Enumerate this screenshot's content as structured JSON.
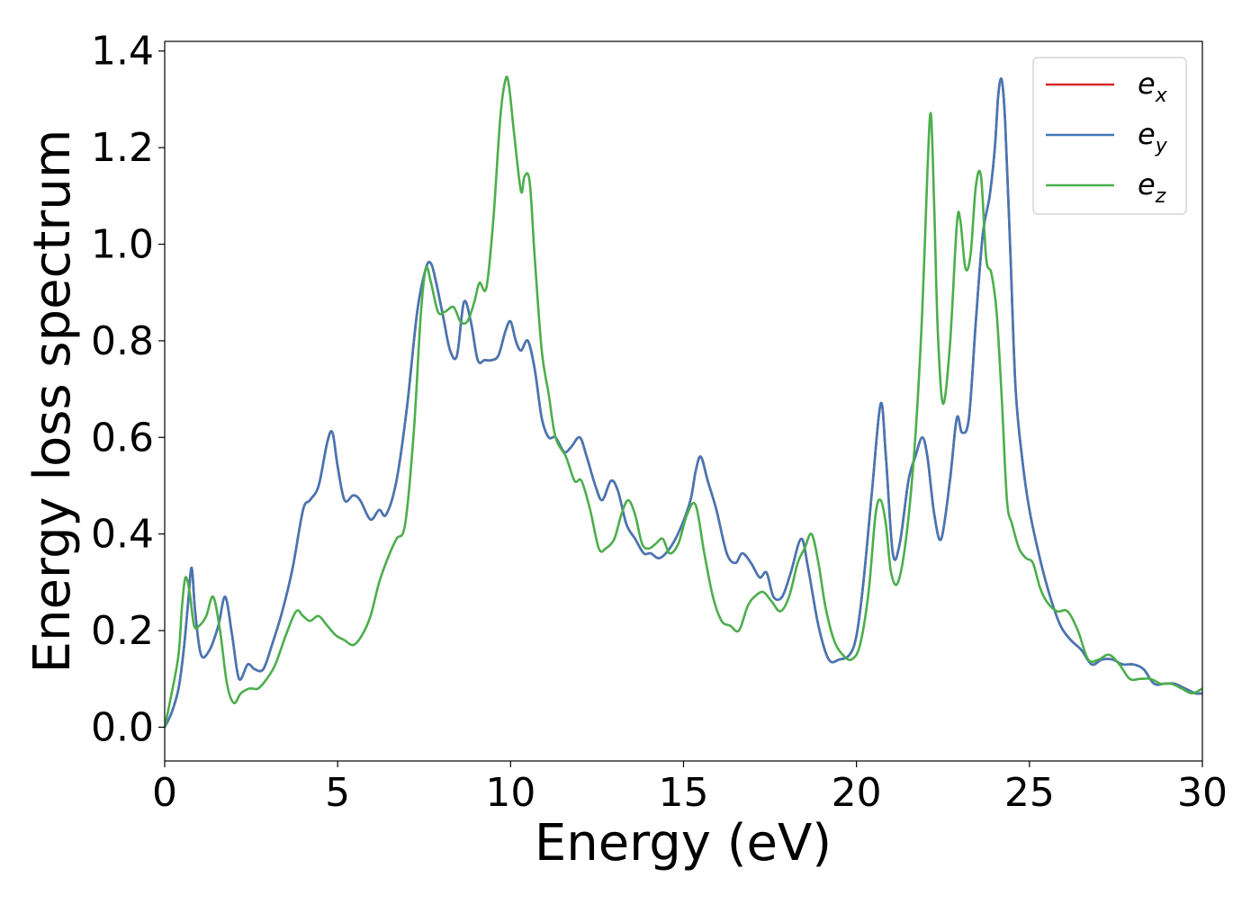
{
  "chart_data": {
    "type": "line",
    "title": "",
    "xlabel": "Energy (eV)",
    "ylabel": "Energy loss spectrum",
    "xlim": [
      0,
      30
    ],
    "ylim": [
      -0.07,
      1.42
    ],
    "xticks": [
      0,
      5,
      10,
      15,
      20,
      25,
      30
    ],
    "yticks": [
      0.0,
      0.2,
      0.4,
      0.6,
      0.8,
      1.0,
      1.2,
      1.4
    ],
    "xtick_labels": [
      "0",
      "5",
      "10",
      "15",
      "20",
      "25",
      "30"
    ],
    "ytick_labels": [
      "0.0",
      "0.2",
      "0.4",
      "0.6",
      "0.8",
      "1.0",
      "1.2",
      "1.4"
    ],
    "grid": false,
    "legend": {
      "location": "top-right",
      "entries": [
        {
          "base": "e",
          "sub": "x",
          "color": "#d62728"
        },
        {
          "base": "e",
          "sub": "y",
          "color": "#4477b5"
        },
        {
          "base": "e",
          "sub": "z",
          "color": "#4cae4c"
        }
      ]
    },
    "series": [
      {
        "name": "e_x",
        "color": "#d62728",
        "x": [
          0,
          0.2,
          0.4,
          0.55,
          0.68,
          0.78,
          0.88,
          1.05,
          1.3,
          1.55,
          1.75,
          1.95,
          2.15,
          2.4,
          2.6,
          2.85,
          3.1,
          3.4,
          3.7,
          4.0,
          4.2,
          4.45,
          4.7,
          4.85,
          5.0,
          5.2,
          5.45,
          5.65,
          5.95,
          6.2,
          6.4,
          6.7,
          7.0,
          7.3,
          7.55,
          7.7,
          7.85,
          8.05,
          8.25,
          8.45,
          8.65,
          8.85,
          9.05,
          9.25,
          9.45,
          9.65,
          9.85,
          10.0,
          10.15,
          10.3,
          10.5,
          10.7,
          10.9,
          11.1,
          11.3,
          11.55,
          11.75,
          12.0,
          12.2,
          12.45,
          12.65,
          12.9,
          13.1,
          13.35,
          13.6,
          13.85,
          14.05,
          14.3,
          14.6,
          14.9,
          15.2,
          15.35,
          15.5,
          15.7,
          15.95,
          16.25,
          16.5,
          16.7,
          16.95,
          17.2,
          17.4,
          17.6,
          17.85,
          18.1,
          18.4,
          18.6,
          18.9,
          19.2,
          19.5,
          19.8,
          20.0,
          20.2,
          20.45,
          20.7,
          20.85,
          21.05,
          21.25,
          21.5,
          21.7,
          21.9,
          22.05,
          22.25,
          22.45,
          22.7,
          22.9,
          23.05,
          23.25,
          23.45,
          23.65,
          23.85,
          24.0,
          24.1,
          24.2,
          24.3,
          24.45,
          24.6,
          24.8,
          25.0,
          25.3,
          25.6,
          25.9,
          26.2,
          26.5,
          26.8,
          27.1,
          27.4,
          27.7,
          28.0,
          28.3,
          28.6,
          28.9,
          29.2,
          29.5,
          29.8,
          30.0
        ],
        "y": [
          0.0,
          0.03,
          0.08,
          0.16,
          0.26,
          0.33,
          0.24,
          0.15,
          0.16,
          0.21,
          0.27,
          0.19,
          0.1,
          0.13,
          0.12,
          0.12,
          0.17,
          0.24,
          0.33,
          0.45,
          0.47,
          0.5,
          0.59,
          0.61,
          0.54,
          0.47,
          0.48,
          0.47,
          0.43,
          0.45,
          0.44,
          0.51,
          0.66,
          0.86,
          0.95,
          0.96,
          0.92,
          0.85,
          0.78,
          0.77,
          0.88,
          0.84,
          0.76,
          0.76,
          0.76,
          0.77,
          0.82,
          0.84,
          0.8,
          0.78,
          0.8,
          0.74,
          0.64,
          0.6,
          0.6,
          0.57,
          0.58,
          0.6,
          0.56,
          0.5,
          0.47,
          0.51,
          0.49,
          0.42,
          0.39,
          0.36,
          0.36,
          0.35,
          0.37,
          0.41,
          0.47,
          0.53,
          0.56,
          0.51,
          0.45,
          0.36,
          0.34,
          0.36,
          0.34,
          0.31,
          0.32,
          0.27,
          0.27,
          0.32,
          0.39,
          0.33,
          0.21,
          0.14,
          0.14,
          0.15,
          0.19,
          0.3,
          0.49,
          0.67,
          0.56,
          0.36,
          0.38,
          0.51,
          0.56,
          0.6,
          0.56,
          0.44,
          0.39,
          0.51,
          0.64,
          0.61,
          0.64,
          0.84,
          1.02,
          1.1,
          1.2,
          1.31,
          1.34,
          1.25,
          0.98,
          0.7,
          0.55,
          0.45,
          0.35,
          0.27,
          0.21,
          0.18,
          0.16,
          0.13,
          0.14,
          0.14,
          0.13,
          0.13,
          0.12,
          0.09,
          0.09,
          0.09,
          0.08,
          0.07,
          0.07
        ]
      },
      {
        "name": "e_y",
        "color": "#4477b5",
        "x": [
          0,
          0.2,
          0.4,
          0.55,
          0.68,
          0.78,
          0.88,
          1.05,
          1.3,
          1.55,
          1.75,
          1.95,
          2.15,
          2.4,
          2.6,
          2.85,
          3.1,
          3.4,
          3.7,
          4.0,
          4.2,
          4.45,
          4.7,
          4.85,
          5.0,
          5.2,
          5.45,
          5.65,
          5.95,
          6.2,
          6.4,
          6.7,
          7.0,
          7.3,
          7.55,
          7.7,
          7.85,
          8.05,
          8.25,
          8.45,
          8.65,
          8.85,
          9.05,
          9.25,
          9.45,
          9.65,
          9.85,
          10.0,
          10.15,
          10.3,
          10.5,
          10.7,
          10.9,
          11.1,
          11.3,
          11.55,
          11.75,
          12.0,
          12.2,
          12.45,
          12.65,
          12.9,
          13.1,
          13.35,
          13.6,
          13.85,
          14.05,
          14.3,
          14.6,
          14.9,
          15.2,
          15.35,
          15.5,
          15.7,
          15.95,
          16.25,
          16.5,
          16.7,
          16.95,
          17.2,
          17.4,
          17.6,
          17.85,
          18.1,
          18.4,
          18.6,
          18.9,
          19.2,
          19.5,
          19.8,
          20.0,
          20.2,
          20.45,
          20.7,
          20.85,
          21.05,
          21.25,
          21.5,
          21.7,
          21.9,
          22.05,
          22.25,
          22.45,
          22.7,
          22.9,
          23.05,
          23.25,
          23.45,
          23.65,
          23.85,
          24.0,
          24.1,
          24.2,
          24.3,
          24.45,
          24.6,
          24.8,
          25.0,
          25.3,
          25.6,
          25.9,
          26.2,
          26.5,
          26.8,
          27.1,
          27.4,
          27.7,
          28.0,
          28.3,
          28.6,
          28.9,
          29.2,
          29.5,
          29.8,
          30.0
        ],
        "y": [
          0.0,
          0.03,
          0.08,
          0.16,
          0.26,
          0.33,
          0.24,
          0.15,
          0.16,
          0.21,
          0.27,
          0.19,
          0.1,
          0.13,
          0.12,
          0.12,
          0.17,
          0.24,
          0.33,
          0.45,
          0.47,
          0.5,
          0.59,
          0.61,
          0.54,
          0.47,
          0.48,
          0.47,
          0.43,
          0.45,
          0.44,
          0.51,
          0.66,
          0.86,
          0.95,
          0.96,
          0.92,
          0.85,
          0.78,
          0.77,
          0.88,
          0.84,
          0.76,
          0.76,
          0.76,
          0.77,
          0.82,
          0.84,
          0.8,
          0.78,
          0.8,
          0.74,
          0.64,
          0.6,
          0.6,
          0.57,
          0.58,
          0.6,
          0.56,
          0.5,
          0.47,
          0.51,
          0.49,
          0.42,
          0.39,
          0.36,
          0.36,
          0.35,
          0.37,
          0.41,
          0.47,
          0.53,
          0.56,
          0.51,
          0.45,
          0.36,
          0.34,
          0.36,
          0.34,
          0.31,
          0.32,
          0.27,
          0.27,
          0.32,
          0.39,
          0.33,
          0.21,
          0.14,
          0.14,
          0.15,
          0.19,
          0.3,
          0.49,
          0.67,
          0.56,
          0.36,
          0.38,
          0.51,
          0.56,
          0.6,
          0.56,
          0.44,
          0.39,
          0.51,
          0.64,
          0.61,
          0.64,
          0.84,
          1.02,
          1.1,
          1.2,
          1.31,
          1.34,
          1.25,
          0.98,
          0.7,
          0.55,
          0.45,
          0.35,
          0.27,
          0.21,
          0.18,
          0.16,
          0.13,
          0.14,
          0.14,
          0.13,
          0.13,
          0.12,
          0.09,
          0.09,
          0.09,
          0.08,
          0.07,
          0.07
        ]
      },
      {
        "name": "e_z",
        "color": "#4cae4c",
        "x": [
          0,
          0.2,
          0.4,
          0.5,
          0.6,
          0.72,
          0.85,
          1.0,
          1.2,
          1.4,
          1.6,
          1.8,
          2.0,
          2.2,
          2.45,
          2.7,
          2.95,
          3.2,
          3.5,
          3.8,
          4.0,
          4.2,
          4.45,
          4.7,
          4.95,
          5.2,
          5.45,
          5.7,
          5.95,
          6.2,
          6.45,
          6.7,
          6.95,
          7.2,
          7.4,
          7.55,
          7.7,
          7.9,
          8.1,
          8.35,
          8.55,
          8.75,
          8.95,
          9.1,
          9.3,
          9.5,
          9.7,
          9.85,
          9.95,
          10.1,
          10.3,
          10.4,
          10.55,
          10.7,
          10.9,
          11.1,
          11.3,
          11.6,
          11.85,
          12.05,
          12.3,
          12.55,
          12.75,
          13.0,
          13.2,
          13.4,
          13.6,
          13.8,
          14.0,
          14.2,
          14.4,
          14.6,
          14.85,
          15.1,
          15.35,
          15.6,
          15.85,
          16.1,
          16.35,
          16.6,
          16.85,
          17.05,
          17.3,
          17.55,
          17.8,
          18.05,
          18.3,
          18.5,
          18.7,
          18.9,
          19.1,
          19.35,
          19.6,
          19.85,
          20.1,
          20.35,
          20.55,
          20.7,
          20.85,
          21.0,
          21.2,
          21.45,
          21.7,
          21.9,
          22.05,
          22.15,
          22.25,
          22.35,
          22.5,
          22.7,
          22.9,
          23.0,
          23.15,
          23.3,
          23.45,
          23.6,
          23.75,
          23.9,
          24.05,
          24.2,
          24.35,
          24.5,
          24.7,
          24.9,
          25.1,
          25.3,
          25.5,
          25.8,
          26.1,
          26.4,
          26.7,
          27.0,
          27.3,
          27.6,
          27.9,
          28.2,
          28.5,
          28.8,
          29.1,
          29.4,
          29.7,
          30.0
        ],
        "y": [
          0.0,
          0.07,
          0.15,
          0.25,
          0.31,
          0.28,
          0.21,
          0.21,
          0.23,
          0.27,
          0.2,
          0.09,
          0.05,
          0.07,
          0.08,
          0.08,
          0.1,
          0.13,
          0.19,
          0.24,
          0.23,
          0.22,
          0.23,
          0.21,
          0.19,
          0.18,
          0.17,
          0.19,
          0.23,
          0.3,
          0.35,
          0.39,
          0.42,
          0.61,
          0.85,
          0.95,
          0.92,
          0.86,
          0.86,
          0.87,
          0.84,
          0.84,
          0.88,
          0.92,
          0.91,
          1.05,
          1.26,
          1.34,
          1.33,
          1.23,
          1.11,
          1.14,
          1.13,
          0.97,
          0.78,
          0.69,
          0.6,
          0.56,
          0.51,
          0.51,
          0.45,
          0.37,
          0.37,
          0.39,
          0.44,
          0.47,
          0.44,
          0.38,
          0.37,
          0.38,
          0.39,
          0.36,
          0.38,
          0.44,
          0.46,
          0.36,
          0.27,
          0.22,
          0.21,
          0.2,
          0.25,
          0.27,
          0.28,
          0.26,
          0.24,
          0.27,
          0.34,
          0.37,
          0.4,
          0.34,
          0.25,
          0.18,
          0.15,
          0.14,
          0.17,
          0.28,
          0.44,
          0.47,
          0.42,
          0.32,
          0.3,
          0.4,
          0.6,
          0.86,
          1.15,
          1.27,
          1.07,
          0.82,
          0.67,
          0.79,
          1.04,
          1.05,
          0.95,
          0.98,
          1.12,
          1.14,
          0.97,
          0.94,
          0.86,
          0.68,
          0.47,
          0.42,
          0.37,
          0.35,
          0.34,
          0.29,
          0.26,
          0.24,
          0.24,
          0.2,
          0.14,
          0.14,
          0.15,
          0.13,
          0.1,
          0.1,
          0.1,
          0.09,
          0.09,
          0.08,
          0.07,
          0.08
        ]
      }
    ]
  }
}
